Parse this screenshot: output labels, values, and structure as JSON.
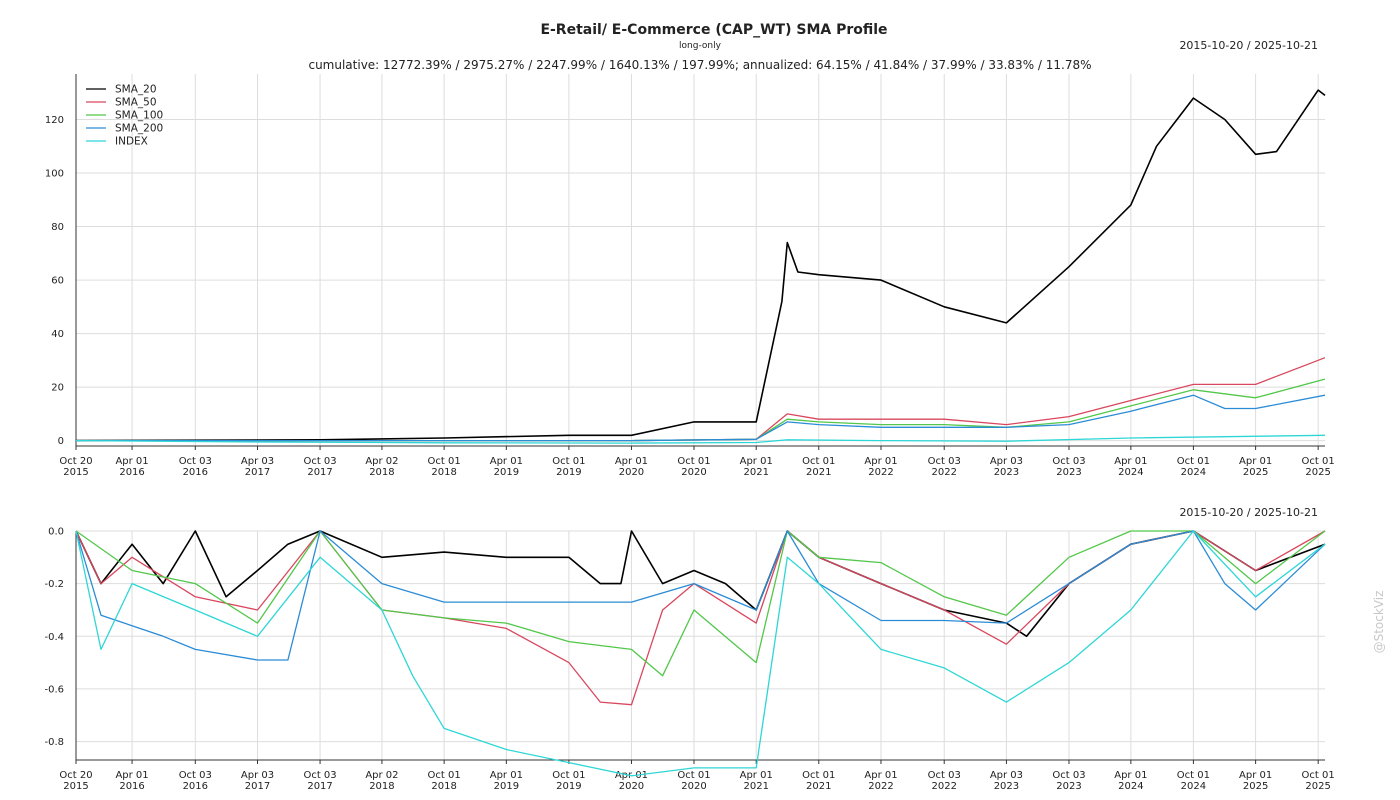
{
  "header": {
    "title": "E-Retail/ E-Commerce (CAP_WT) SMA Profile",
    "subtitle": "long-only",
    "stats": "cumulative: 12772.39% / 2975.27% / 2247.99% / 1640.13% / 197.99%; annualized: 64.15% / 41.84% / 37.99% / 33.83% / 11.78%",
    "date_range_top": "2015-10-20 / 2025-10-21",
    "date_range_bottom": "2015-10-20 / 2025-10-21"
  },
  "watermark": "@StockViz",
  "colors": {
    "SMA_20": "#000000",
    "SMA_50": "#d9475e",
    "SMA_100": "#52c74a",
    "SMA_200": "#2b8cd6",
    "INDEX": "#2fd6d6"
  },
  "chart_data": [
    {
      "type": "line",
      "panel": "cumulative-returns",
      "x_ticks": [
        "Oct 20 2015",
        "Apr 01 2016",
        "Oct 03 2016",
        "Apr 03 2017",
        "Oct 03 2017",
        "Apr 02 2018",
        "Oct 01 2018",
        "Apr 01 2019",
        "Oct 01 2019",
        "Apr 01 2020",
        "Oct 01 2020",
        "Apr 01 2021",
        "Oct 01 2021",
        "Apr 01 2022",
        "Oct 03 2022",
        "Apr 03 2023",
        "Oct 03 2023",
        "Apr 01 2024",
        "Oct 01 2024",
        "Apr 01 2025",
        "Oct 01 2025"
      ],
      "x_range": [
        "2015-10-20",
        "2025-10-21"
      ],
      "ylim": [
        -2,
        137
      ],
      "y_ticks": [
        0,
        20,
        40,
        60,
        80,
        100,
        120
      ],
      "legend_position": "top-left",
      "grid": true,
      "series": [
        {
          "name": "SMA_20",
          "x": [
            "2015-10-20",
            "2017-10-03",
            "2018-10-01",
            "2019-10-01",
            "2020-04-01",
            "2020-10-01",
            "2021-04-01",
            "2021-06-15",
            "2021-07-01",
            "2021-08-01",
            "2021-10-01",
            "2022-04-01",
            "2022-10-03",
            "2023-04-03",
            "2023-10-03",
            "2024-04-01",
            "2024-06-15",
            "2024-10-01",
            "2025-01-01",
            "2025-04-01",
            "2025-06-01",
            "2025-10-01",
            "2025-10-21"
          ],
          "values": [
            0,
            0.3,
            1,
            2,
            2,
            7,
            7,
            52,
            74,
            63,
            62,
            60,
            50,
            44,
            65,
            88,
            110,
            128,
            120,
            107,
            108,
            131,
            129
          ]
        },
        {
          "name": "SMA_50",
          "x": [
            "2015-10-20",
            "2019-10-01",
            "2020-04-01",
            "2021-04-01",
            "2021-07-01",
            "2021-10-01",
            "2022-04-01",
            "2022-10-03",
            "2023-04-03",
            "2023-10-03",
            "2024-04-01",
            "2024-10-01",
            "2025-04-01",
            "2025-10-21"
          ],
          "values": [
            0,
            0,
            0,
            0.5,
            10,
            8,
            8,
            8,
            6,
            9,
            15,
            21,
            21,
            31
          ]
        },
        {
          "name": "SMA_100",
          "x": [
            "2015-10-20",
            "2019-10-01",
            "2020-04-01",
            "2021-04-01",
            "2021-07-01",
            "2021-10-01",
            "2022-04-01",
            "2022-10-03",
            "2023-04-03",
            "2023-10-03",
            "2024-04-01",
            "2024-10-01",
            "2025-04-01",
            "2025-10-21"
          ],
          "values": [
            0,
            0,
            0,
            0.5,
            8,
            7,
            6,
            6,
            5,
            7,
            13,
            19,
            16,
            23
          ]
        },
        {
          "name": "SMA_200",
          "x": [
            "2015-10-20",
            "2019-10-01",
            "2020-04-01",
            "2021-04-01",
            "2021-07-01",
            "2021-10-01",
            "2022-04-01",
            "2022-10-03",
            "2023-04-03",
            "2023-10-03",
            "2024-04-01",
            "2024-10-01",
            "2025-01-01",
            "2025-04-01",
            "2025-10-21"
          ],
          "values": [
            0,
            0,
            0,
            0.5,
            7,
            6,
            5,
            5,
            5,
            6,
            11,
            17,
            12,
            12,
            17
          ]
        },
        {
          "name": "INDEX",
          "x": [
            "2015-10-20",
            "2017-04-03",
            "2018-10-01",
            "2020-04-01",
            "2021-04-01",
            "2021-07-01",
            "2022-04-01",
            "2023-04-03",
            "2024-04-01",
            "2025-10-21"
          ],
          "values": [
            0,
            -0.5,
            -0.8,
            -0.9,
            -0.7,
            0.3,
            0,
            -0.2,
            1,
            2
          ]
        }
      ]
    },
    {
      "type": "line",
      "panel": "drawdown",
      "x_ticks": [
        "Oct 20 2015",
        "Apr 01 2016",
        "Oct 03 2016",
        "Apr 03 2017",
        "Oct 03 2017",
        "Apr 02 2018",
        "Oct 01 2018",
        "Apr 01 2019",
        "Oct 01 2019",
        "Apr 01 2020",
        "Oct 01 2020",
        "Apr 01 2021",
        "Oct 01 2021",
        "Apr 01 2022",
        "Oct 03 2022",
        "Apr 03 2023",
        "Oct 03 2023",
        "Apr 01 2024",
        "Oct 01 2024",
        "Apr 01 2025",
        "Oct 01 2025"
      ],
      "x_range": [
        "2015-10-20",
        "2025-10-21"
      ],
      "ylim": [
        -0.87,
        0.0
      ],
      "y_ticks": [
        0.0,
        -0.2,
        -0.4,
        -0.6,
        -0.8
      ],
      "y_tick_labels": [
        "0.0",
        "-0.2",
        "-0.4",
        "-0.6",
        "-0.8"
      ],
      "grid": true,
      "series": [
        {
          "name": "SMA_20",
          "x": [
            "2015-10-20",
            "2016-01-01",
            "2016-04-01",
            "2016-07-01",
            "2016-10-03",
            "2017-01-01",
            "2017-04-03",
            "2017-07-01",
            "2017-10-03",
            "2018-04-02",
            "2018-10-01",
            "2019-04-01",
            "2019-10-01",
            "2020-01-01",
            "2020-03-01",
            "2020-04-01",
            "2020-07-01",
            "2020-10-01",
            "2021-01-01",
            "2021-04-01",
            "2021-07-01",
            "2021-10-01",
            "2022-04-01",
            "2022-10-03",
            "2023-04-03",
            "2023-06-01",
            "2023-10-03",
            "2024-04-01",
            "2024-10-01",
            "2025-04-01",
            "2025-10-21"
          ],
          "values": [
            0,
            -0.2,
            -0.05,
            -0.2,
            0,
            -0.25,
            -0.15,
            -0.05,
            0,
            -0.1,
            -0.08,
            -0.1,
            -0.1,
            -0.2,
            -0.2,
            0,
            -0.2,
            -0.15,
            -0.2,
            -0.3,
            0,
            -0.1,
            -0.2,
            -0.3,
            -0.35,
            -0.4,
            -0.2,
            -0.05,
            0,
            -0.15,
            -0.05
          ]
        },
        {
          "name": "SMA_50",
          "x": [
            "2015-10-20",
            "2016-01-01",
            "2016-04-01",
            "2016-10-03",
            "2017-04-03",
            "2017-10-03",
            "2018-04-02",
            "2018-10-01",
            "2019-04-01",
            "2019-10-01",
            "2020-01-01",
            "2020-04-01",
            "2020-07-01",
            "2020-10-01",
            "2021-04-01",
            "2021-07-01",
            "2021-10-01",
            "2022-04-01",
            "2022-10-03",
            "2023-04-03",
            "2023-10-03",
            "2024-04-01",
            "2024-10-01",
            "2025-04-01",
            "2025-10-21"
          ],
          "values": [
            0,
            -0.2,
            -0.1,
            -0.25,
            -0.3,
            0,
            -0.3,
            -0.33,
            -0.37,
            -0.5,
            -0.65,
            -0.66,
            -0.3,
            -0.2,
            -0.35,
            0,
            -0.1,
            -0.2,
            -0.3,
            -0.43,
            -0.2,
            -0.05,
            0,
            -0.15,
            0
          ]
        },
        {
          "name": "SMA_100",
          "x": [
            "2015-10-20",
            "2016-04-01",
            "2016-10-03",
            "2017-04-03",
            "2017-10-03",
            "2018-04-02",
            "2018-10-01",
            "2019-04-01",
            "2019-10-01",
            "2020-04-01",
            "2020-07-01",
            "2020-10-01",
            "2021-04-01",
            "2021-07-01",
            "2021-10-01",
            "2022-04-01",
            "2022-10-03",
            "2023-04-03",
            "2023-10-03",
            "2024-04-01",
            "2024-10-01",
            "2025-04-01",
            "2025-10-21"
          ],
          "values": [
            0,
            -0.15,
            -0.2,
            -0.35,
            0,
            -0.3,
            -0.33,
            -0.35,
            -0.42,
            -0.45,
            -0.55,
            -0.3,
            -0.5,
            0,
            -0.1,
            -0.12,
            -0.25,
            -0.32,
            -0.1,
            0,
            0,
            -0.2,
            0
          ]
        },
        {
          "name": "SMA_200",
          "x": [
            "2015-10-20",
            "2016-01-01",
            "2016-07-01",
            "2016-10-03",
            "2017-04-03",
            "2017-07-01",
            "2017-10-03",
            "2018-04-02",
            "2018-10-01",
            "2019-04-01",
            "2019-10-01",
            "2020-04-01",
            "2020-10-01",
            "2021-04-01",
            "2021-07-01",
            "2021-10-01",
            "2022-04-01",
            "2022-10-03",
            "2023-04-03",
            "2023-10-03",
            "2024-04-01",
            "2024-10-01",
            "2025-01-01",
            "2025-04-01",
            "2025-10-21"
          ],
          "values": [
            0,
            -0.32,
            -0.4,
            -0.45,
            -0.49,
            -0.49,
            0,
            -0.2,
            -0.27,
            -0.27,
            -0.27,
            -0.27,
            -0.2,
            -0.3,
            0,
            -0.2,
            -0.34,
            -0.34,
            -0.35,
            -0.2,
            -0.05,
            0,
            -0.2,
            -0.3,
            -0.05
          ]
        },
        {
          "name": "INDEX",
          "x": [
            "2015-10-20",
            "2016-01-01",
            "2016-04-01",
            "2016-10-03",
            "2017-04-03",
            "2017-10-03",
            "2018-04-02",
            "2018-07-01",
            "2018-10-01",
            "2019-04-01",
            "2019-10-01",
            "2020-04-01",
            "2020-10-01",
            "2021-04-01",
            "2021-07-01",
            "2021-10-01",
            "2022-04-01",
            "2022-10-03",
            "2023-04-03",
            "2023-10-03",
            "2024-04-01",
            "2024-10-01",
            "2025-04-01",
            "2025-10-21"
          ],
          "values": [
            0,
            -0.45,
            -0.2,
            -0.3,
            -0.4,
            -0.1,
            -0.3,
            -0.55,
            -0.75,
            -0.83,
            -0.88,
            -0.93,
            -0.9,
            -0.9,
            -0.1,
            -0.2,
            -0.45,
            -0.52,
            -0.65,
            -0.5,
            -0.3,
            0,
            -0.25,
            -0.05
          ]
        }
      ]
    }
  ]
}
